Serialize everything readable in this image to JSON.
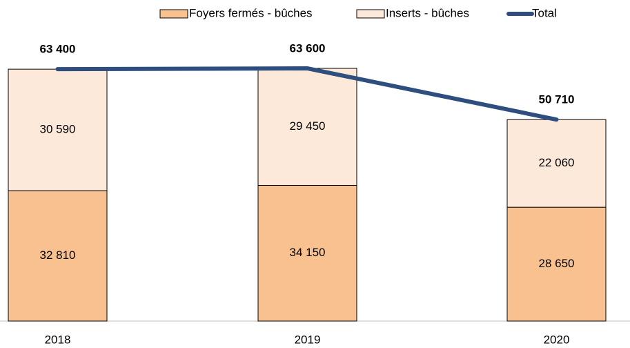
{
  "chart_data": {
    "type": "bar",
    "stacked": true,
    "categories": [
      "2018",
      "2019",
      "2020"
    ],
    "series": [
      {
        "name": "Foyers fermés - bûches",
        "color": "#f9c18f",
        "values": [
          32810,
          34150,
          28650
        ],
        "value_labels": [
          "32 810",
          "34 150",
          "28 650"
        ]
      },
      {
        "name": "Inserts - bûches",
        "color": "#fde9d9",
        "values": [
          30590,
          29450,
          22060
        ],
        "value_labels": [
          "30 590",
          "29 450",
          "22 060"
        ]
      },
      {
        "name": "Total",
        "type": "line",
        "color": "#2e4e7e",
        "values": [
          63400,
          63600,
          50710
        ],
        "value_labels": [
          "63 400",
          "63 600",
          "50 710"
        ]
      }
    ]
  }
}
